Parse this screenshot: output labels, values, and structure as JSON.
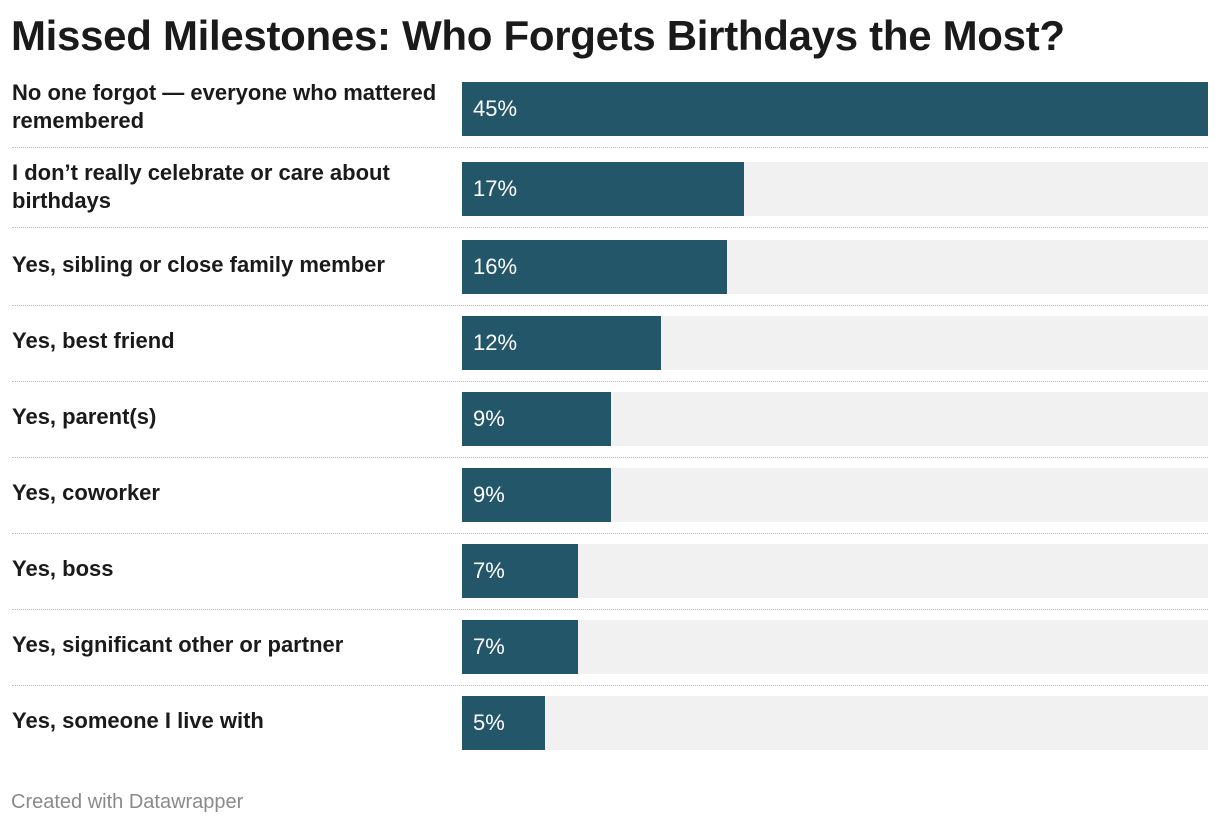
{
  "chart_data": {
    "type": "bar",
    "orientation": "horizontal",
    "title": "Missed Milestones: Who Forgets Birthdays the Most?",
    "categories": [
      "No one forgot — everyone who mattered remembered",
      "I don’t really celebrate or care about birthdays",
      "Yes, sibling or close family member",
      "Yes, best friend",
      "Yes, parent(s)",
      "Yes, coworker",
      "Yes, boss",
      "Yes, significant other or partner",
      "Yes, someone I live with"
    ],
    "values": [
      45,
      17,
      16,
      12,
      9,
      9,
      7,
      7,
      5
    ],
    "value_labels": [
      "45%",
      "17%",
      "16%",
      "12%",
      "9%",
      "9%",
      "7%",
      "7%",
      "5%"
    ],
    "unit": "%",
    "xlim": [
      0,
      45
    ],
    "bar_color": "#24566a",
    "track_color": "#f1f1f1",
    "grid": false,
    "legend": "none"
  },
  "footer": {
    "credit": "Created with Datawrapper"
  }
}
